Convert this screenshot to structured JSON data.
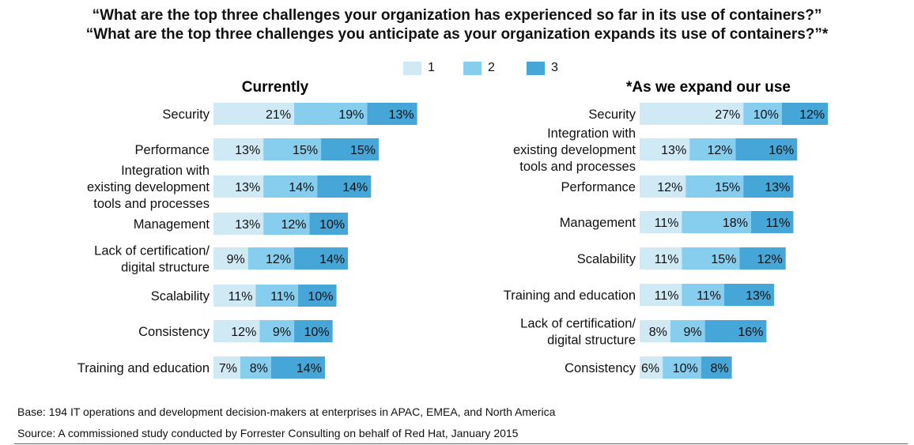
{
  "title_line1": "“What are the top three challenges your organization has experienced so far in its use of containers?”",
  "title_line2": "“What are the top three challenges you anticipate as your organization expands its use of containers?”*",
  "legend": [
    {
      "label": "1",
      "color": "#cfe9f5"
    },
    {
      "label": "2",
      "color": "#86cdee"
    },
    {
      "label": "3",
      "color": "#46a6d8"
    }
  ],
  "footer_base": "Base: 194 IT operations and development decision-makers at enterprises in APAC, EMEA, and North America",
  "footer_source": "Source: A commissioned study conducted by Forrester Consulting on behalf of Red Hat, January 2015",
  "chart_data": [
    {
      "type": "bar",
      "stacked": true,
      "orientation": "horizontal",
      "title": "Currently",
      "categories": [
        [
          "Security"
        ],
        [
          "Performance"
        ],
        [
          "Integration with",
          "existing development",
          "tools and processes"
        ],
        [
          "Management"
        ],
        [
          "Lack of certification/",
          "digital structure"
        ],
        [
          "Scalability"
        ],
        [
          "Consistency"
        ],
        [
          "Training and education"
        ]
      ],
      "series": [
        {
          "name": "1",
          "values": [
            21,
            13,
            13,
            13,
            9,
            11,
            12,
            7
          ]
        },
        {
          "name": "2",
          "values": [
            19,
            15,
            14,
            12,
            12,
            11,
            9,
            8
          ]
        },
        {
          "name": "3",
          "values": [
            13,
            15,
            14,
            10,
            14,
            10,
            10,
            14
          ]
        }
      ],
      "value_suffix": "%"
    },
    {
      "type": "bar",
      "stacked": true,
      "orientation": "horizontal",
      "title": "*As we expand our use",
      "categories": [
        [
          "Security"
        ],
        [
          "Integration with",
          "existing development",
          "tools and processes"
        ],
        [
          "Performance"
        ],
        [
          "Management"
        ],
        [
          "Scalability"
        ],
        [
          "Training and education"
        ],
        [
          "Lack of certification/",
          "digital structure"
        ],
        [
          "Consistency"
        ]
      ],
      "series": [
        {
          "name": "1",
          "values": [
            27,
            13,
            12,
            11,
            11,
            11,
            8,
            6
          ]
        },
        {
          "name": "2",
          "values": [
            10,
            12,
            15,
            18,
            15,
            11,
            9,
            10
          ]
        },
        {
          "name": "3",
          "values": [
            12,
            16,
            13,
            11,
            12,
            13,
            16,
            8
          ]
        }
      ],
      "value_suffix": "%"
    }
  ]
}
